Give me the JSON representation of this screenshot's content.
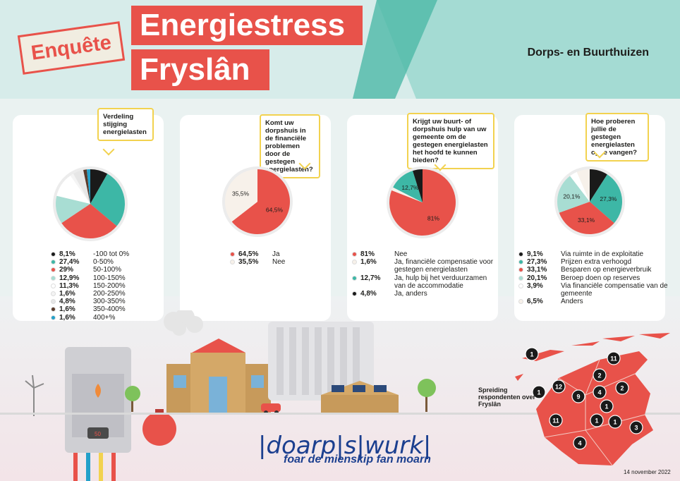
{
  "header": {
    "badge": "Enquête",
    "title_line1": "Energiestress",
    "title_line2": "Fryslân",
    "subtitle": "Dorps- en Buurthuizen"
  },
  "colors": {
    "black": "#1a1a1a",
    "teal": "#3db7a6",
    "red": "#e8524a",
    "mint": "#a8ddd3",
    "white": "#ffffff",
    "lightgray": "#f0f0f0",
    "brown": "#5a3a2a",
    "blue": "#23a0c9"
  },
  "chart_data": [
    {
      "type": "pie",
      "title": "Verdeling stijging energielasten",
      "slices": [
        {
          "label": "-100 tot 0%",
          "value": 8.1,
          "text": "8,1%",
          "color": "#1a1a1a"
        },
        {
          "label": "0-50%",
          "value": 27.4,
          "text": "27,4%",
          "color": "#3db7a6"
        },
        {
          "label": "50-100%",
          "value": 29,
          "text": "29%",
          "color": "#e8524a"
        },
        {
          "label": "100-150%",
          "value": 12.9,
          "text": "12,9%",
          "color": "#a8ddd3"
        },
        {
          "label": "150-200%",
          "value": 11.3,
          "text": "11,3%",
          "color": "#ffffff"
        },
        {
          "label": "200-250%",
          "value": 1.6,
          "text": "1,6%",
          "color": "#f4f4f4"
        },
        {
          "label": "300-350%",
          "value": 4.8,
          "text": "4,8%",
          "color": "#e6e6e6"
        },
        {
          "label": "350-400%",
          "value": 1.6,
          "text": "1,6%",
          "color": "#5a3a2a"
        },
        {
          "label": "400+%",
          "value": 1.6,
          "text": "1,6%",
          "color": "#23a0c9"
        }
      ]
    },
    {
      "type": "pie",
      "title": "Komt uw dorpshuis in de financiële problemen door de gestegen energielasten?",
      "slices": [
        {
          "label": "Ja",
          "value": 64.5,
          "text": "64,5%",
          "color": "#e8524a"
        },
        {
          "label": "Nee",
          "value": 35.5,
          "text": "35,5%",
          "color": "#f7f1ea"
        }
      ]
    },
    {
      "type": "pie",
      "title": "Krijgt uw buurt- of dorpshuis hulp van uw gemeente om de gestegen energielasten het hoofd te kunnen bieden?",
      "slices": [
        {
          "label": "Nee",
          "value": 81,
          "text": "81%",
          "color": "#e8524a"
        },
        {
          "label": "Ja, financiële compensatie voor gestegen energielasten",
          "value": 1.6,
          "text": "1,6%",
          "color": "#f7f1ea"
        },
        {
          "label": "Ja, hulp bij het verduurzamen van de accommodatie",
          "value": 12.7,
          "text": "12,7%",
          "color": "#3db7a6"
        },
        {
          "label": "Ja, anders",
          "value": 4.8,
          "text": "4,8%",
          "color": "#1a1a1a"
        }
      ]
    },
    {
      "type": "pie",
      "title": "Hoe proberen jullie de gestegen energielasten op te vangen?",
      "slices": [
        {
          "label": "Via ruimte in de exploitatie",
          "value": 9.1,
          "text": "9,1%",
          "color": "#1a1a1a"
        },
        {
          "label": "Prijzen extra verhoogd",
          "value": 27.3,
          "text": "27,3%",
          "color": "#3db7a6"
        },
        {
          "label": "Besparen op energieverbruik",
          "value": 33.1,
          "text": "33,1%",
          "color": "#e8524a"
        },
        {
          "label": "Beroep doen op reserves",
          "value": 20.1,
          "text": "20,1%",
          "color": "#a8ddd3"
        },
        {
          "label": "Via financiële compensatie van de gemeente",
          "value": 3.9,
          "text": "3,9%",
          "color": "#ffffff"
        },
        {
          "label": "Anders",
          "value": 6.5,
          "text": "6,5%",
          "color": "#f7f1ea"
        }
      ]
    }
  ],
  "map": {
    "label": "Spreiding respondenten over Fryslân",
    "counts": [
      "1",
      "11",
      "2",
      "2",
      "12",
      "9",
      "4",
      "1",
      "1",
      "1",
      "11",
      "1",
      "3",
      "4"
    ]
  },
  "footer": {
    "logo": "|doarp|s|wurk|",
    "tagline": "foar de mienskip fan moarn",
    "date": "14 november 2022"
  }
}
